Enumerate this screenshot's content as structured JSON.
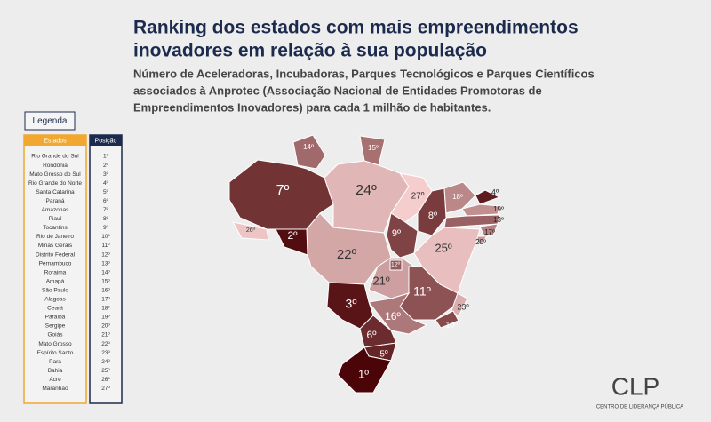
{
  "header": {
    "title_lines": [
      "Ranking dos estados com mais empreendimentos",
      "inovadores em relação à sua população"
    ],
    "subtitle_lines": [
      "Número de Aceleradoras, Incubadoras, Parques Tecnológicos e Parques Científicos",
      "associados à Anprotec (Associação Nacional de Entidades Promotoras de",
      "Empreendimentos Inovadores) para cada 1 milhão de habitantes."
    ]
  },
  "legend": {
    "title": "Legenda",
    "columns": [
      "Estados",
      "Posição"
    ],
    "rows": [
      [
        "Rio Grande do Sul",
        "1º"
      ],
      [
        "Rondônia",
        "2º"
      ],
      [
        "Mato Grosso do Sul",
        "3º"
      ],
      [
        "Rio Grande do Norte",
        "4º"
      ],
      [
        "Santa Catarina",
        "5º"
      ],
      [
        "Paraná",
        "6º"
      ],
      [
        "Amazonas",
        "7º"
      ],
      [
        "Piauí",
        "8º"
      ],
      [
        "Tocantins",
        "9º"
      ],
      [
        "Rio de Janeiro",
        "10º"
      ],
      [
        "Minas Gerais",
        "11º"
      ],
      [
        "Distrito Federal",
        "12º"
      ],
      [
        "Pernambuco",
        "13º"
      ],
      [
        "Roraima",
        "14º"
      ],
      [
        "Amapá",
        "15º"
      ],
      [
        "São Paulo",
        "16º"
      ],
      [
        "Alagoas",
        "17º"
      ],
      [
        "Ceará",
        "18º"
      ],
      [
        "Paraíba",
        "19º"
      ],
      [
        "Sergipe",
        "20º"
      ],
      [
        "Goiás",
        "21º"
      ],
      [
        "Mato Grosso",
        "22º"
      ],
      [
        "Espírito Santo",
        "23º"
      ],
      [
        "Pará",
        "24º"
      ],
      [
        "Bahia",
        "25º"
      ],
      [
        "Acre",
        "26º"
      ],
      [
        "Maranhão",
        "27º"
      ]
    ]
  },
  "map": {
    "labels": [
      "7º",
      "14º",
      "15º",
      "24º",
      "26º",
      "2º",
      "22º",
      "27º",
      "8º",
      "18º",
      "4º",
      "19º",
      "13º",
      "17º",
      "20º",
      "9º",
      "25º",
      "21º",
      "12º",
      "11º",
      "23º",
      "10º",
      "16º",
      "3º",
      "6º",
      "5º",
      "1º"
    ]
  },
  "logo": {
    "mark": "CLP",
    "name": "CENTRO DE LIDERANÇA PÚBLICA"
  }
}
